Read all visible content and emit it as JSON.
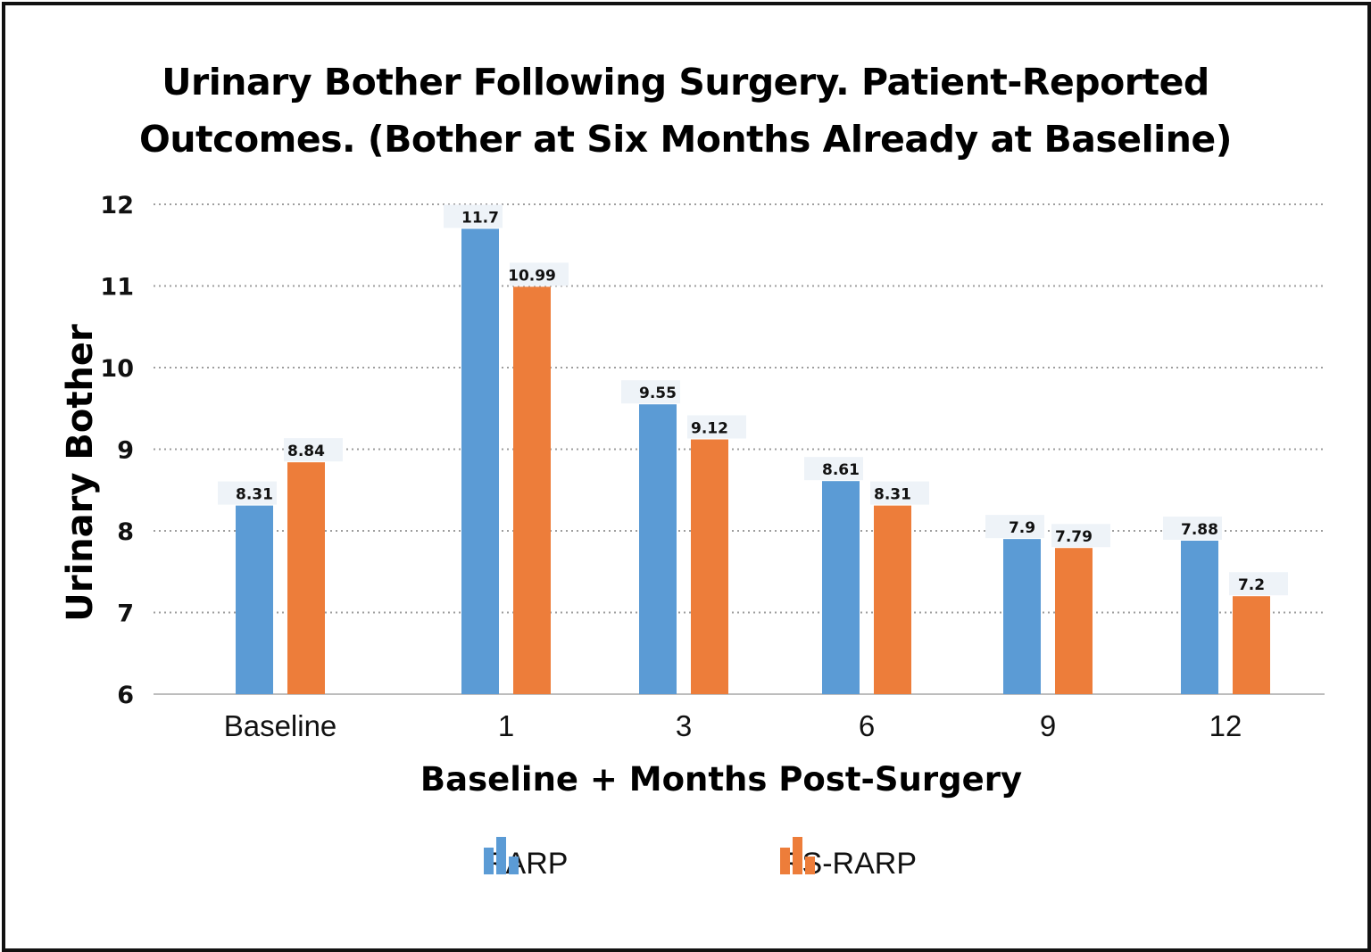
{
  "chart_data": {
    "type": "bar",
    "title_lines": [
      "Urinary Bother Following Surgery. Patient-Reported",
      "Outcomes. (Bother at Six Months Already at Baseline)"
    ],
    "xlabel": "Baseline + Months Post-Surgery",
    "ylabel": "Urinary Bother",
    "categories": [
      "Baseline",
      "1",
      "3",
      "6",
      "9",
      "12"
    ],
    "series": [
      {
        "name": "RARP",
        "color": "#5b9bd5",
        "values": [
          8.31,
          11.7,
          9.55,
          8.61,
          7.9,
          7.88
        ]
      },
      {
        "name": "RS-RARP",
        "color": "#ed7d3a",
        "values": [
          8.84,
          10.99,
          9.12,
          8.31,
          7.79,
          7.2
        ]
      }
    ],
    "data_labels": [
      [
        "8.31",
        "11.7",
        "9.55",
        "8.61",
        "7.9",
        "7.88"
      ],
      [
        "8.84",
        "10.99",
        "9.12",
        "8.31",
        "7.79",
        "7.2"
      ]
    ],
    "ylim": [
      6,
      12
    ],
    "yticks": [
      "6",
      "7",
      "8",
      "9",
      "10",
      "11",
      "12"
    ],
    "grid": "dotted-horizontal",
    "legend_position": "bottom"
  }
}
